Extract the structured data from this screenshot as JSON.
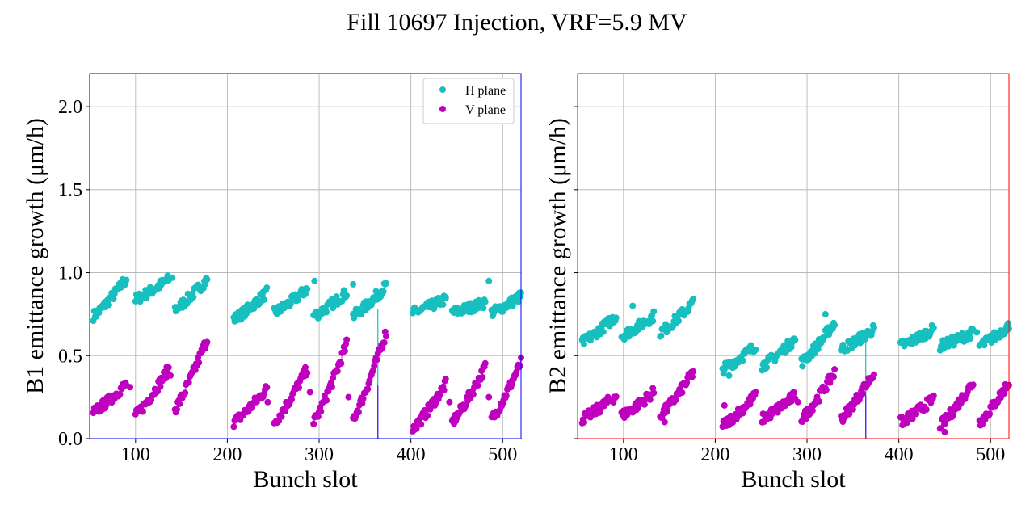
{
  "figure": {
    "title": "Fill 10697 Injection, VRF=5.9 MV"
  },
  "chart_data": [
    {
      "type": "scatter",
      "frame_color": "#0000ff",
      "xlabel": "Bunch slot",
      "ylabel": "B1 emittance growth (μm/h)",
      "xlim": [
        50,
        520
      ],
      "ylim": [
        0.0,
        2.2
      ],
      "xticks": [
        100,
        200,
        300,
        400,
        500
      ],
      "yticks": [
        0.0,
        0.5,
        1.0,
        1.5,
        2.0
      ],
      "ytick_labels": [
        "0.0",
        "0.5",
        "1.0",
        "1.5",
        "2.0"
      ],
      "grid": true,
      "legend": {
        "position": "top-right",
        "entries": [
          "H plane",
          "V plane"
        ]
      },
      "series": [
        {
          "name": "H plane",
          "color": "#17bfbf",
          "segments": [
            {
              "x0": 54,
              "x1": 90,
              "y0": 0.74,
              "y1": 0.96
            },
            {
              "x0": 100,
              "x1": 136,
              "y0": 0.84,
              "y1": 0.96
            },
            {
              "x0": 143,
              "x1": 178,
              "y0": 0.78,
              "y1": 0.96
            },
            {
              "x0": 207,
              "x1": 243,
              "y0": 0.72,
              "y1": 0.88
            },
            {
              "x0": 251,
              "x1": 287,
              "y0": 0.76,
              "y1": 0.9
            },
            {
              "x0": 294,
              "x1": 330,
              "y0": 0.74,
              "y1": 0.88
            },
            {
              "x0": 337,
              "x1": 373,
              "y0": 0.74,
              "y1": 0.92
            },
            {
              "x0": 402,
              "x1": 438,
              "y0": 0.76,
              "y1": 0.84
            },
            {
              "x0": 445,
              "x1": 481,
              "y0": 0.76,
              "y1": 0.82
            },
            {
              "x0": 488,
              "x1": 520,
              "y0": 0.76,
              "y1": 0.86
            }
          ],
          "outliers": [
            {
              "x": 86,
              "y": 0.96
            },
            {
              "x": 140,
              "y": 0.97
            },
            {
              "x": 295,
              "y": 0.95
            },
            {
              "x": 337,
              "y": 0.93
            },
            {
              "x": 485,
              "y": 0.95
            }
          ],
          "drops": [
            {
              "x": 364,
              "y_top": 0.78,
              "y_bottom": 0.0
            }
          ]
        },
        {
          "name": "V plane",
          "color": "#bf00bf",
          "segments": [
            {
              "x0": 54,
              "x1": 90,
              "y0": 0.16,
              "y1": 0.33
            },
            {
              "x0": 100,
              "x1": 136,
              "y0": 0.14,
              "y1": 0.42
            },
            {
              "x0": 143,
              "x1": 178,
              "y0": 0.18,
              "y1": 0.6
            },
            {
              "x0": 207,
              "x1": 243,
              "y0": 0.1,
              "y1": 0.3
            },
            {
              "x0": 251,
              "x1": 287,
              "y0": 0.1,
              "y1": 0.42
            },
            {
              "x0": 294,
              "x1": 330,
              "y0": 0.1,
              "y1": 0.57
            },
            {
              "x0": 337,
              "x1": 373,
              "y0": 0.12,
              "y1": 0.64
            },
            {
              "x0": 402,
              "x1": 438,
              "y0": 0.06,
              "y1": 0.33
            },
            {
              "x0": 445,
              "x1": 481,
              "y0": 0.1,
              "y1": 0.43
            },
            {
              "x0": 488,
              "x1": 520,
              "y0": 0.12,
              "y1": 0.46
            }
          ],
          "outliers": [
            {
              "x": 94,
              "y": 0.31
            },
            {
              "x": 138,
              "y": 0.38
            },
            {
              "x": 244,
              "y": 0.22
            },
            {
              "x": 290,
              "y": 0.28
            },
            {
              "x": 332,
              "y": 0.25
            },
            {
              "x": 442,
              "y": 0.22
            },
            {
              "x": 485,
              "y": 0.25
            }
          ],
          "drops": [
            {
              "x": 364,
              "y_top": 0.32,
              "y_bottom": 0.0
            }
          ]
        }
      ]
    },
    {
      "type": "scatter",
      "frame_color": "#ff0000",
      "xlabel": "Bunch slot",
      "ylabel": "B2 emittance growth (μm/h)",
      "xlim": [
        50,
        520
      ],
      "ylim": [
        0.0,
        2.2
      ],
      "xticks": [
        100,
        200,
        300,
        400,
        500
      ],
      "yticks": [
        0.0,
        0.5,
        1.0,
        1.5,
        2.0
      ],
      "ytick_labels": [
        "",
        "",
        "",
        "",
        ""
      ],
      "grid": true,
      "legend": null,
      "series": [
        {
          "name": "H plane",
          "color": "#17bfbf",
          "segments": [
            {
              "x0": 55,
              "x1": 92,
              "y0": 0.58,
              "y1": 0.74
            },
            {
              "x0": 98,
              "x1": 133,
              "y0": 0.62,
              "y1": 0.74
            },
            {
              "x0": 140,
              "x1": 176,
              "y0": 0.64,
              "y1": 0.82
            },
            {
              "x0": 208,
              "x1": 244,
              "y0": 0.42,
              "y1": 0.56
            },
            {
              "x0": 251,
              "x1": 287,
              "y0": 0.44,
              "y1": 0.6
            },
            {
              "x0": 294,
              "x1": 330,
              "y0": 0.46,
              "y1": 0.7
            },
            {
              "x0": 337,
              "x1": 373,
              "y0": 0.54,
              "y1": 0.66
            },
            {
              "x0": 402,
              "x1": 438,
              "y0": 0.56,
              "y1": 0.66
            },
            {
              "x0": 445,
              "x1": 481,
              "y0": 0.56,
              "y1": 0.64
            },
            {
              "x0": 488,
              "x1": 520,
              "y0": 0.56,
              "y1": 0.68
            }
          ],
          "outliers": [
            {
              "x": 110,
              "y": 0.8
            },
            {
              "x": 215,
              "y": 0.38
            },
            {
              "x": 320,
              "y": 0.75
            },
            {
              "x": 485,
              "y": 0.64
            }
          ],
          "drops": [
            {
              "x": 364,
              "y_top": 0.6,
              "y_bottom": 0.0
            }
          ]
        },
        {
          "name": "V plane",
          "color": "#bf00bf",
          "segments": [
            {
              "x0": 55,
              "x1": 92,
              "y0": 0.12,
              "y1": 0.26
            },
            {
              "x0": 98,
              "x1": 133,
              "y0": 0.14,
              "y1": 0.28
            },
            {
              "x0": 140,
              "x1": 176,
              "y0": 0.14,
              "y1": 0.4
            },
            {
              "x0": 208,
              "x1": 244,
              "y0": 0.08,
              "y1": 0.26
            },
            {
              "x0": 251,
              "x1": 287,
              "y0": 0.12,
              "y1": 0.26
            },
            {
              "x0": 294,
              "x1": 330,
              "y0": 0.12,
              "y1": 0.4
            },
            {
              "x0": 337,
              "x1": 373,
              "y0": 0.12,
              "y1": 0.4
            },
            {
              "x0": 402,
              "x1": 438,
              "y0": 0.1,
              "y1": 0.24
            },
            {
              "x0": 445,
              "x1": 481,
              "y0": 0.08,
              "y1": 0.34
            },
            {
              "x0": 488,
              "x1": 520,
              "y0": 0.1,
              "y1": 0.34
            }
          ],
          "outliers": [
            {
              "x": 145,
              "y": 0.1
            },
            {
              "x": 210,
              "y": 0.2
            },
            {
              "x": 290,
              "y": 0.22
            },
            {
              "x": 450,
              "y": 0.04
            }
          ],
          "drops": [
            {
              "x": 364,
              "y_top": 0.26,
              "y_bottom": 0.0
            }
          ]
        }
      ]
    }
  ]
}
